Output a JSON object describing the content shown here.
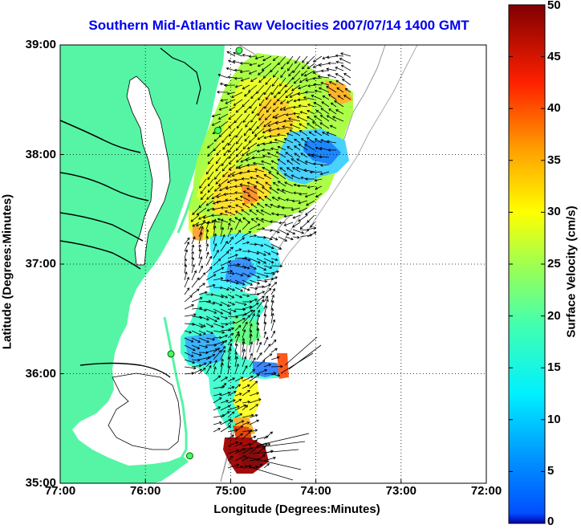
{
  "title": "Southern Mid-Atlantic Raw Velocities 2007/07/14 1400 GMT",
  "chart_data": {
    "type": "heatmap",
    "xlabel": "Longitude (Degrees:Minutes)",
    "ylabel": "Latitude (Degrees:Minutes)",
    "x_ticks": [
      "77:00",
      "76:00",
      "75:00",
      "74:00",
      "73:00",
      "72:00"
    ],
    "y_ticks": [
      "39:00",
      "38:00",
      "37:00",
      "36:00",
      "35:00"
    ],
    "xlim": [
      -77,
      -72
    ],
    "ylim": [
      35,
      39
    ],
    "grid": true,
    "colorbar": {
      "label": "Surface Velocity (cm/s)",
      "ticks": [
        "0",
        "5",
        "10",
        "15",
        "20",
        "25",
        "30",
        "35",
        "40",
        "45",
        "50"
      ],
      "range": [
        0,
        50
      ],
      "colormap": "jet"
    },
    "colors": {
      "land": "#55f5a5",
      "title": "#0000ee"
    },
    "stations": [
      {
        "lon": -74.9,
        "lat": 38.95
      },
      {
        "lon": -75.15,
        "lat": 38.22
      },
      {
        "lon": -75.7,
        "lat": 36.18
      },
      {
        "lon": -75.48,
        "lat": 35.25
      }
    ]
  }
}
